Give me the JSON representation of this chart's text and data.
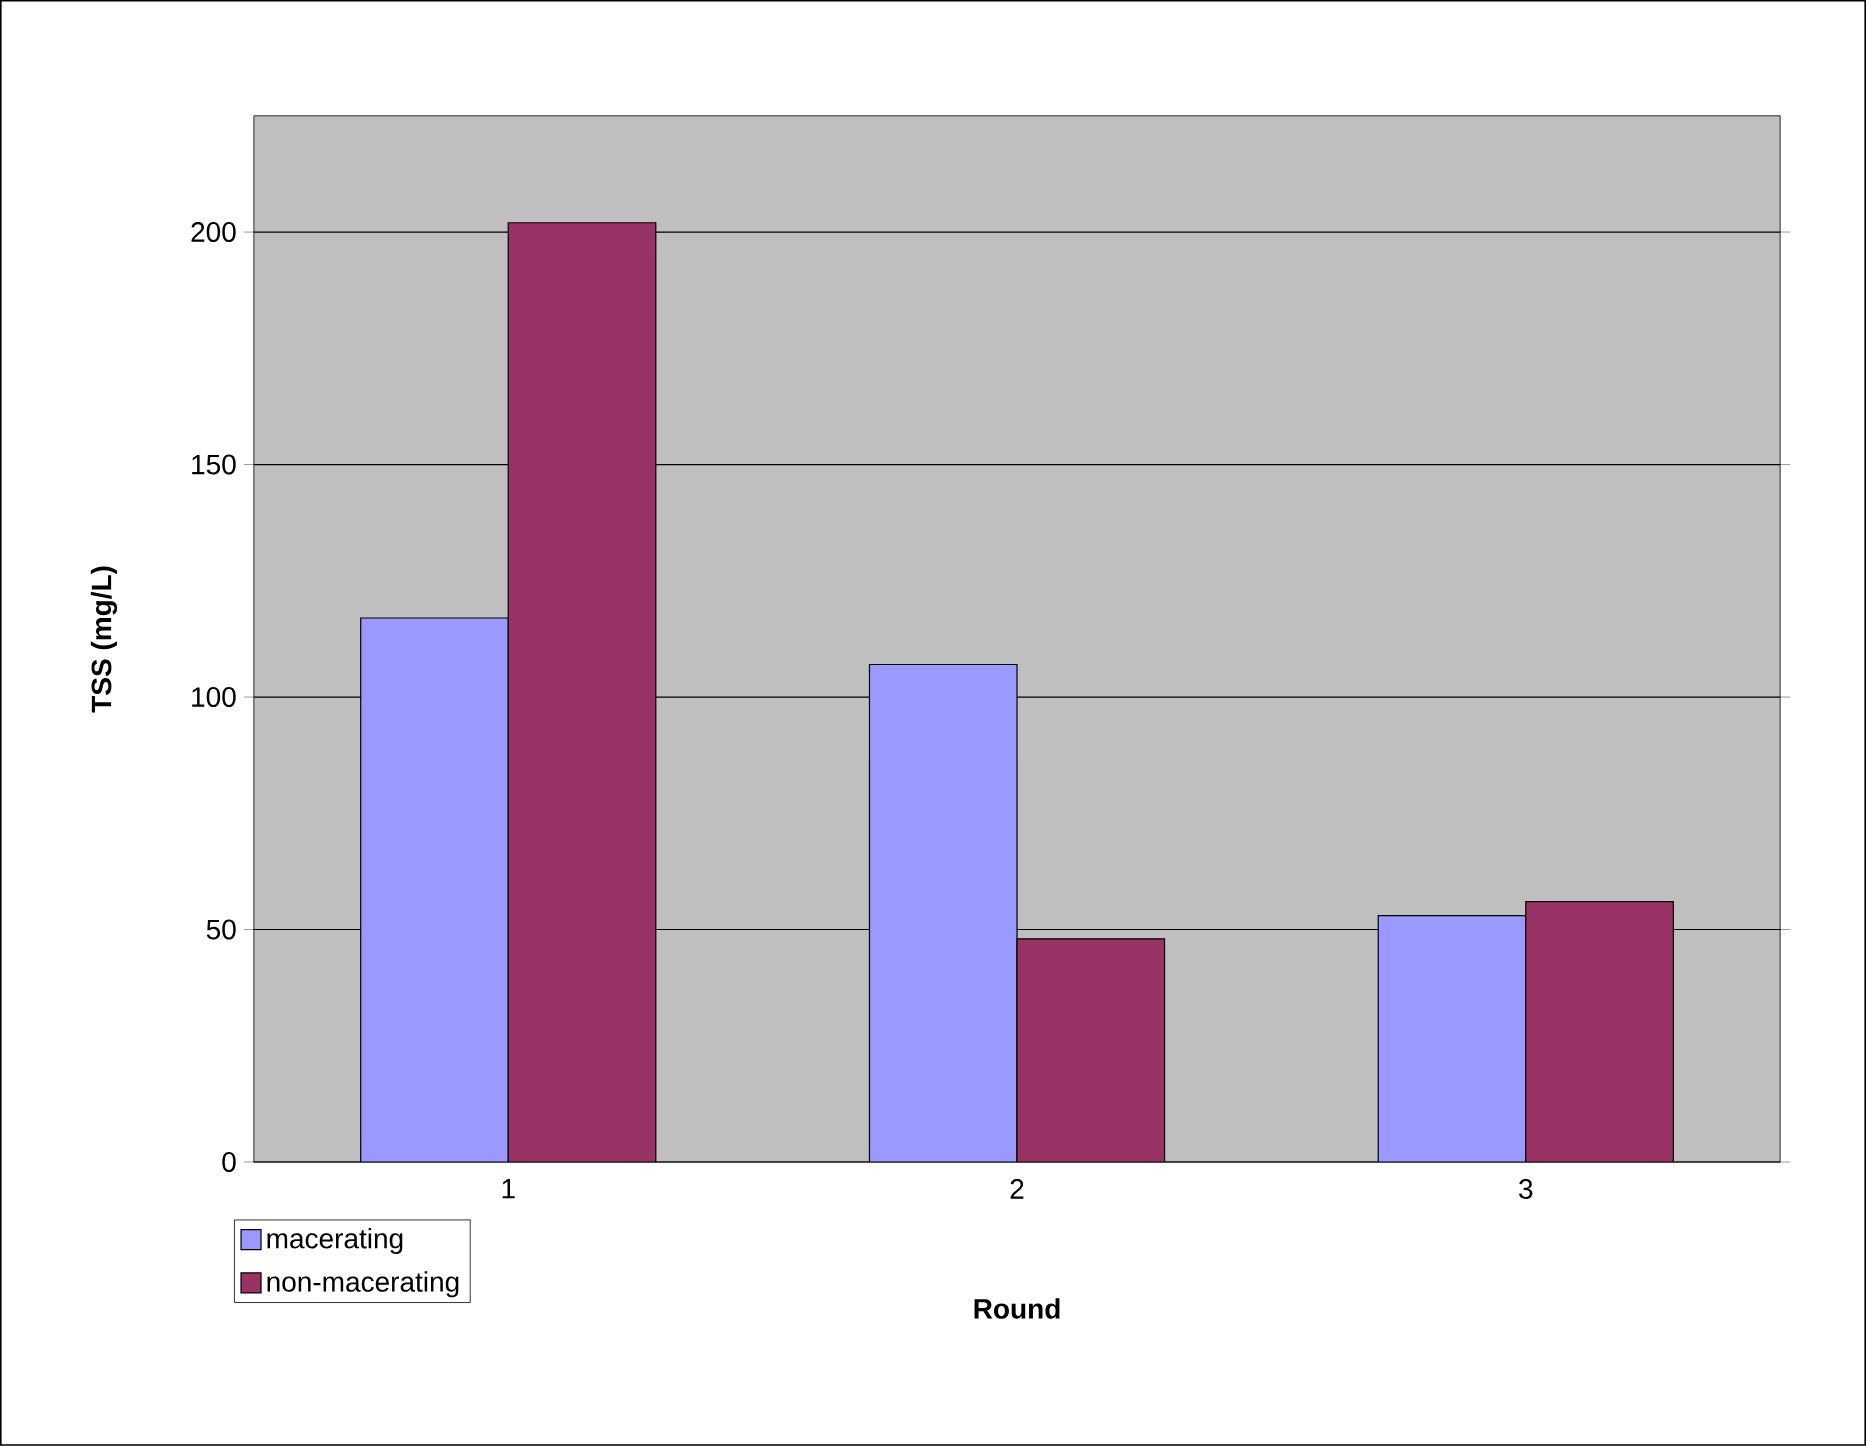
{
  "chart_data": {
    "type": "bar",
    "xlabel": "Round",
    "ylabel": "TSS (mg/L)",
    "categories": [
      "1",
      "2",
      "3"
    ],
    "series": [
      {
        "name": "macerating",
        "color": "#9999ff",
        "values": [
          117,
          107,
          53
        ]
      },
      {
        "name": "non-macerating",
        "color": "#993366",
        "values": [
          202,
          48,
          56
        ]
      }
    ],
    "ylim": [
      0,
      225
    ],
    "yticks": [
      0,
      50,
      100,
      150,
      200
    ],
    "grid": "y",
    "legend": "bottom left"
  }
}
